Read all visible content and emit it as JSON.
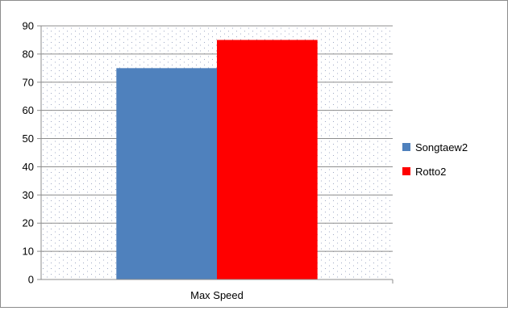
{
  "chart_data": {
    "type": "bar",
    "categories": [
      "Max Speed"
    ],
    "series": [
      {
        "name": "Songtaew2",
        "values": [
          75
        ],
        "color": "#4f81bd"
      },
      {
        "name": "Rotto2",
        "values": [
          85
        ],
        "color": "#ff0000"
      }
    ],
    "ylim": [
      0,
      90
    ],
    "yticks": [
      0,
      10,
      20,
      30,
      40,
      50,
      60,
      70,
      80,
      90
    ],
    "title": "",
    "xlabel": "",
    "ylabel": "",
    "grid": true,
    "legend_position": "right",
    "plot_background": "dotted"
  }
}
